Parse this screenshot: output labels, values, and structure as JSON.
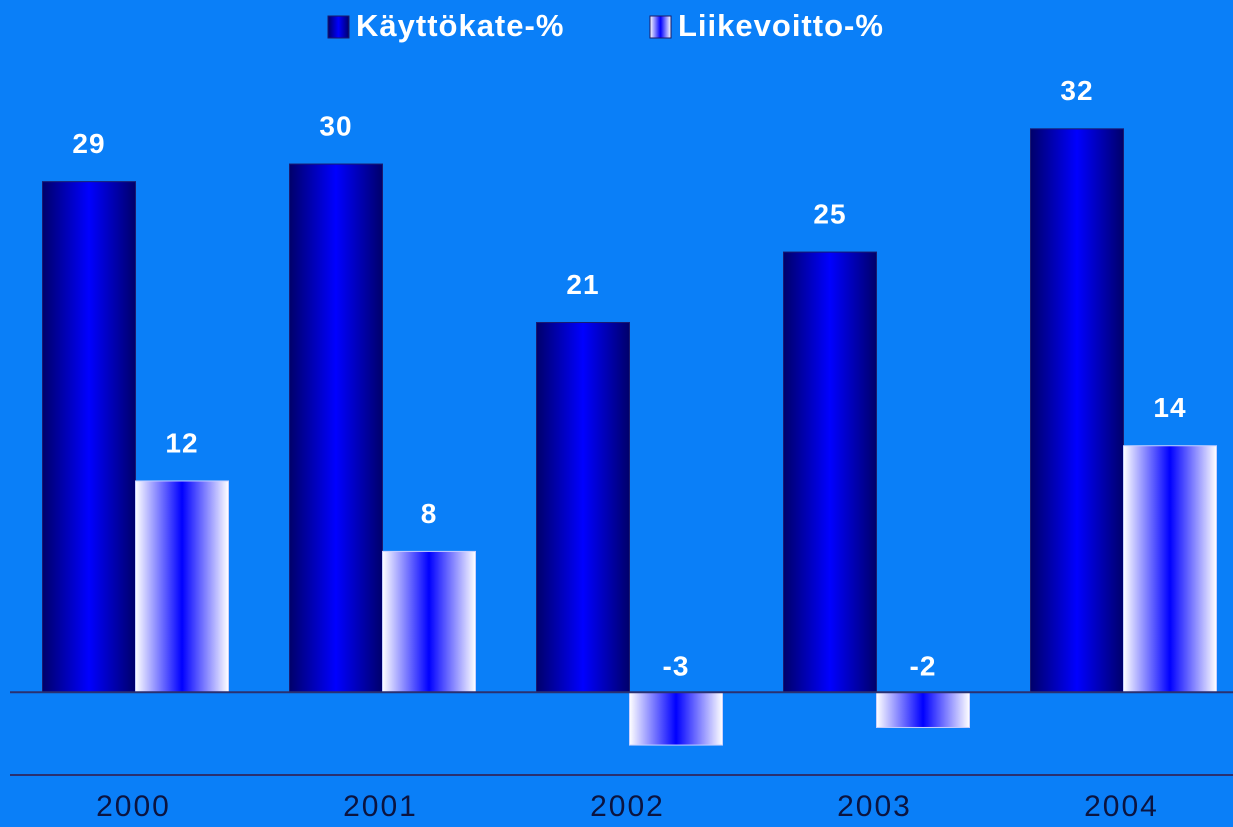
{
  "chart_data": {
    "type": "bar",
    "categories": [
      "2000",
      "2001",
      "2002",
      "2003",
      "2004"
    ],
    "series": [
      {
        "name": "Käyttökate-%",
        "color": "#0000ff",
        "values": [
          29,
          30,
          21,
          25,
          32
        ]
      },
      {
        "name": "Liikevoitto-%",
        "color": "#0000ff",
        "values": [
          12,
          8,
          -3,
          -2,
          14
        ]
      }
    ],
    "ylim": [
      -4.7,
      35
    ],
    "legend": "top"
  }
}
